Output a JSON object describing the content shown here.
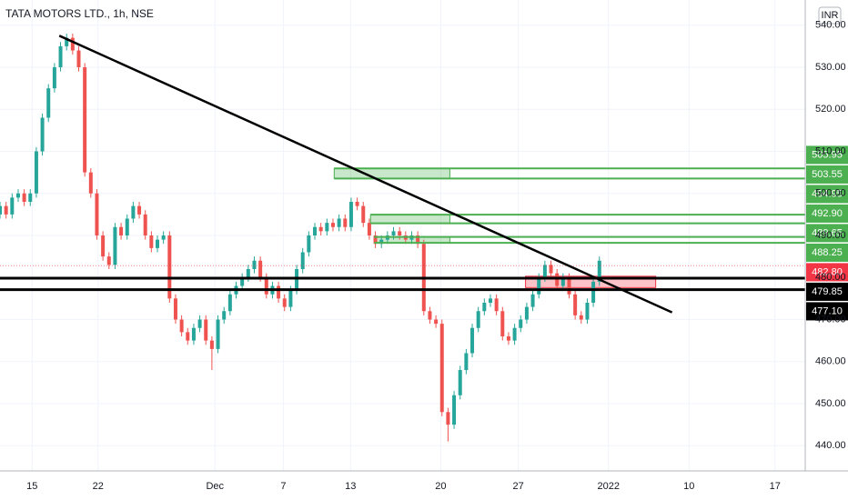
{
  "chart_data": {
    "type": "candlestick",
    "title": "TATA MOTORS LTD., 1h, NSE",
    "currency": "INR",
    "up_color": "#26a69a",
    "down_color": "#ef5350",
    "grid": true,
    "xlim": [
      0,
      133
    ],
    "ylim": [
      434,
      546
    ],
    "yticks": [
      {
        "value": 440,
        "label": "440.00"
      },
      {
        "value": 450,
        "label": "450.00"
      },
      {
        "value": 460,
        "label": "460.00"
      },
      {
        "value": 470,
        "label": "470.00"
      },
      {
        "value": 480,
        "label": "480.00"
      },
      {
        "value": 490,
        "label": "490.00"
      },
      {
        "value": 500,
        "label": "500.00"
      },
      {
        "value": 510,
        "label": "510.00"
      },
      {
        "value": 520,
        "label": "520.00"
      },
      {
        "value": 530,
        "label": "530.00"
      },
      {
        "value": 540,
        "label": "540.00"
      }
    ],
    "xticks": [
      {
        "value": 5.3,
        "label": "15"
      },
      {
        "value": 16.2,
        "label": "22"
      },
      {
        "value": 35.5,
        "label": "Dec"
      },
      {
        "value": 46.8,
        "label": "7"
      },
      {
        "value": 57.9,
        "label": "13"
      },
      {
        "value": 72.8,
        "label": "20"
      },
      {
        "value": 85.6,
        "label": "27"
      },
      {
        "value": 100.5,
        "label": "2022"
      },
      {
        "value": 113.8,
        "label": "10"
      },
      {
        "value": 128,
        "label": "17"
      }
    ],
    "open": [
      495,
      497,
      495,
      499,
      500,
      498,
      500,
      510,
      518,
      525,
      530,
      535,
      537,
      534,
      530,
      505,
      500,
      490,
      485,
      483,
      492,
      490,
      494,
      497,
      495,
      490,
      487,
      489,
      490,
      475,
      470,
      467,
      465,
      468,
      470,
      465,
      463,
      470,
      472,
      476,
      478,
      480,
      482,
      484,
      480,
      476,
      478,
      475,
      473,
      477,
      482,
      486,
      490,
      492,
      491,
      493,
      492,
      494,
      492,
      498,
      497,
      493,
      490,
      488,
      489,
      490,
      491,
      490,
      489,
      490,
      488,
      472,
      470,
      469,
      448,
      445,
      452,
      458,
      462,
      468,
      472,
      474,
      475,
      472,
      466,
      465,
      468,
      470,
      473,
      476,
      480,
      483,
      481,
      478,
      480,
      476,
      471,
      470,
      474,
      479
    ],
    "high": [
      498,
      498,
      500,
      501,
      501,
      501,
      511,
      519,
      526,
      531,
      536,
      538,
      538,
      535,
      531,
      506,
      501,
      491,
      486,
      493,
      493,
      495,
      498,
      498,
      496,
      491,
      490,
      491,
      491,
      476,
      471,
      468,
      469,
      471,
      471,
      466,
      471,
      473,
      477,
      479,
      481,
      483,
      485,
      485,
      481,
      479,
      479,
      476,
      478,
      483,
      487,
      491,
      493,
      493,
      494,
      494,
      495,
      495,
      499,
      499,
      498,
      494,
      491,
      490,
      491,
      492,
      492,
      491,
      491,
      491,
      489,
      473,
      471,
      470,
      449,
      453,
      459,
      463,
      469,
      473,
      475,
      476,
      476,
      473,
      467,
      469,
      471,
      474,
      477,
      481,
      484,
      484,
      482,
      481,
      481,
      477,
      472,
      475,
      480,
      485
    ],
    "low": [
      494,
      494,
      494,
      498,
      497,
      497,
      499,
      509,
      517,
      524,
      529,
      534,
      533,
      529,
      504,
      499,
      489,
      484,
      482,
      482,
      489,
      489,
      493,
      494,
      489,
      486,
      486,
      488,
      474,
      469,
      466,
      464,
      464,
      467,
      464,
      458,
      462,
      469,
      471,
      475,
      477,
      479,
      481,
      479,
      475,
      475,
      474,
      472,
      472,
      476,
      481,
      485,
      489,
      490,
      490,
      491,
      491,
      491,
      491,
      496,
      492,
      489,
      487,
      487,
      488,
      489,
      489,
      488,
      488,
      487,
      471,
      469,
      468,
      447,
      441,
      444,
      451,
      457,
      461,
      467,
      471,
      473,
      471,
      465,
      464,
      464,
      467,
      469,
      472,
      475,
      479,
      480,
      477,
      477,
      475,
      470,
      469,
      469,
      473,
      478
    ],
    "close": [
      497,
      495,
      499,
      500,
      498,
      500,
      510,
      518,
      525,
      530,
      535,
      537,
      534,
      530,
      505,
      500,
      490,
      485,
      483,
      492,
      490,
      494,
      497,
      495,
      490,
      487,
      489,
      490,
      475,
      470,
      467,
      465,
      468,
      470,
      465,
      463,
      470,
      472,
      476,
      478,
      480,
      482,
      484,
      480,
      476,
      478,
      475,
      473,
      477,
      482,
      486,
      490,
      492,
      491,
      493,
      492,
      494,
      492,
      498,
      497,
      493,
      490,
      488,
      489,
      490,
      491,
      490,
      489,
      490,
      488,
      472,
      470,
      469,
      448,
      445,
      452,
      458,
      462,
      468,
      472,
      474,
      475,
      472,
      466,
      465,
      468,
      470,
      473,
      476,
      480,
      483,
      481,
      478,
      480,
      476,
      471,
      470,
      474,
      479,
      484
    ],
    "levels": [
      {
        "value": 505.95,
        "label": "505.95",
        "color": "#4caf50",
        "from": 55.2
      },
      {
        "value": 503.55,
        "label": "503.55",
        "color": "#4caf50",
        "from": 55.2
      },
      {
        "value": 494.95,
        "label": "494.95",
        "color": "#4caf50",
        "from": 61.2
      },
      {
        "value": 492.9,
        "label": "492.90",
        "color": "#4caf50",
        "from": 61.2
      },
      {
        "value": 489.65,
        "label": "489.65",
        "color": "#4caf50",
        "from": 61.8
      },
      {
        "value": 488.25,
        "label": "488.25",
        "color": "#4caf50",
        "from": 61.8
      },
      {
        "value": 482.8,
        "label": "482.80",
        "color": "#f23645",
        "from": 0,
        "dashed": true
      },
      {
        "value": 479.85,
        "label": "479.85",
        "color": "#000000",
        "from": 0
      },
      {
        "value": 477.1,
        "label": "477.10",
        "color": "#000000",
        "from": 0
      }
    ],
    "zones": [
      {
        "x": [
          55.2,
          74.3
        ],
        "y": [
          505.95,
          503.55
        ],
        "color": "#4caf50"
      },
      {
        "x": [
          61.2,
          74.3
        ],
        "y": [
          494.95,
          492.9
        ],
        "color": "#4caf50"
      },
      {
        "x": [
          61.8,
          74.3
        ],
        "y": [
          489.65,
          488.25
        ],
        "color": "#4caf50"
      },
      {
        "x": [
          86.8,
          108.3
        ],
        "y": [
          480.3,
          477.6
        ],
        "color": "#f23645"
      }
    ],
    "trendline": {
      "x": [
        9.8,
        111
      ],
      "y": [
        537.5,
        471.7
      ],
      "color": "#000000"
    }
  }
}
